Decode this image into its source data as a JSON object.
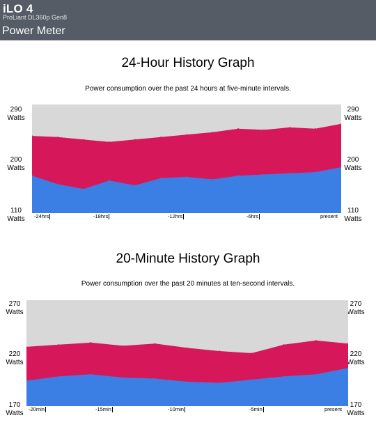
{
  "header": {
    "brand": "iLO 4",
    "model": "ProLiant DL360p Gen8",
    "page_title": "Power Meter"
  },
  "graphs": [
    {
      "title": "24-Hour History Graph",
      "subtitle": "Power consumption over the past 24 hours at five-minute intervals.",
      "y_labels": {
        "top": "290",
        "mid": "200",
        "bottom": "110",
        "unit": "Watts"
      },
      "x_labels": [
        "-24hrs",
        "-18hrs",
        "-12hrs",
        "-6hrs",
        "present"
      ]
    },
    {
      "title": "20-Minute History Graph",
      "subtitle": "Power consumption over the past 20 minutes at ten-second intervals.",
      "y_labels": {
        "top": "270",
        "mid": "220",
        "bottom": "170",
        "unit": "Watts"
      },
      "x_labels": [
        "-20min",
        "-15min",
        "-10min",
        "-5min",
        "present"
      ]
    }
  ],
  "colors": {
    "header_bg": "#555c66",
    "plot_bg": "#d8d8d8",
    "max_series": "#d6185a",
    "avg_series": "#3c7fe4"
  },
  "chart_data": [
    {
      "type": "area",
      "ylim": [
        110,
        290
      ],
      "series_order": [
        "peak",
        "average"
      ],
      "x": [
        -24,
        -22,
        -20,
        -18,
        -16,
        -14,
        -12,
        -10,
        -8,
        -6,
        -4,
        -2,
        0
      ],
      "series": [
        {
          "values": [
            238,
            236,
            232,
            228,
            232,
            236,
            240,
            244,
            250,
            248,
            252,
            250,
            258
          ]
        },
        {
          "values": [
            172,
            158,
            150,
            164,
            156,
            168,
            170,
            166,
            172,
            174,
            176,
            178,
            186
          ]
        }
      ]
    },
    {
      "type": "area",
      "ylim": [
        170,
        270
      ],
      "series_order": [
        "peak",
        "average"
      ],
      "x": [
        -20,
        -18,
        -16,
        -14,
        -12,
        -10,
        -8,
        -6,
        -4,
        -2,
        0
      ],
      "series": [
        {
          "values": [
            226,
            228,
            230,
            227,
            229,
            225,
            222,
            220,
            228,
            232,
            229
          ]
        },
        {
          "values": [
            194,
            198,
            200,
            197,
            196,
            193,
            192,
            195,
            198,
            200,
            206
          ]
        }
      ]
    }
  ]
}
